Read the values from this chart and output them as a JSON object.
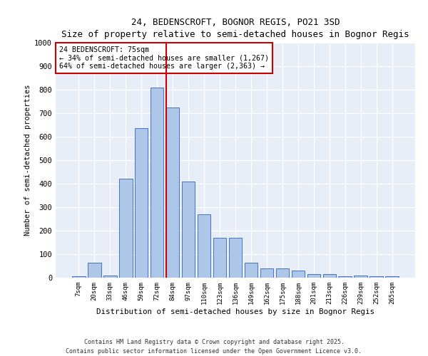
{
  "title": "24, BEDENSCROFT, BOGNOR REGIS, PO21 3SD",
  "subtitle": "Size of property relative to semi-detached houses in Bognor Regis",
  "xlabel": "Distribution of semi-detached houses by size in Bognor Regis",
  "ylabel": "Number of semi-detached properties",
  "categories": [
    "7sqm",
    "20sqm",
    "33sqm",
    "46sqm",
    "59sqm",
    "72sqm",
    "84sqm",
    "97sqm",
    "110sqm",
    "123sqm",
    "136sqm",
    "149sqm",
    "162sqm",
    "175sqm",
    "188sqm",
    "201sqm",
    "213sqm",
    "226sqm",
    "239sqm",
    "252sqm",
    "265sqm"
  ],
  "values": [
    5,
    65,
    10,
    420,
    635,
    810,
    725,
    410,
    270,
    170,
    170,
    65,
    40,
    40,
    30,
    15,
    15,
    5,
    10,
    5,
    5
  ],
  "bar_color": "#aec6e8",
  "bar_edge_color": "#4472c4",
  "marker_line_color": "#cc0000",
  "annotation_box_color": "#ffffff",
  "annotation_box_edge": "#cc0000",
  "ylim": [
    0,
    1000
  ],
  "yticks": [
    0,
    100,
    200,
    300,
    400,
    500,
    600,
    700,
    800,
    900,
    1000
  ],
  "footer1": "Contains HM Land Registry data © Crown copyright and database right 2025.",
  "footer2": "Contains public sector information licensed under the Open Government Licence v3.0.",
  "bg_color": "#e8eef8",
  "fig_bg_color": "#ffffff",
  "annot_line1": "24 BEDENSCROFT: 75sqm",
  "annot_line2": "← 34% of semi-detached houses are smaller (1,267)",
  "annot_line3": "64% of semi-detached houses are larger (2,363) →"
}
